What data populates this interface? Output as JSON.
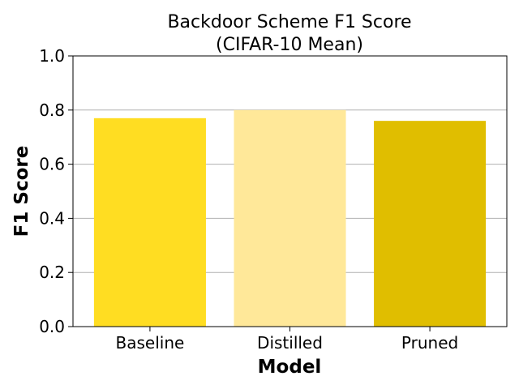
{
  "chart_data": {
    "type": "bar",
    "title_lines": [
      "Backdoor Scheme F1 Score",
      "(CIFAR-10 Mean)"
    ],
    "xlabel": "Model",
    "ylabel": "F1 Score",
    "categories": [
      "Baseline",
      "Distilled",
      "Pruned"
    ],
    "values": [
      0.77,
      0.8,
      0.76
    ],
    "colors": [
      "#FFDD22",
      "#FFE899",
      "#E0BE00"
    ],
    "ylim": [
      0,
      1.0
    ],
    "yticks": [
      "0.0",
      "0.2",
      "0.4",
      "0.6",
      "0.8",
      "1.0"
    ],
    "grid": "y"
  }
}
